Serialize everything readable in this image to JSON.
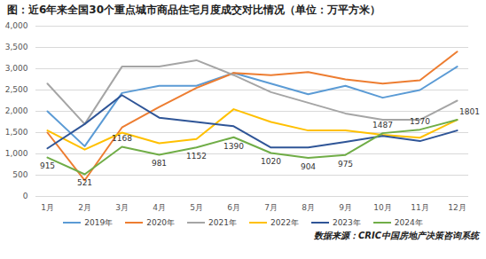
{
  "chart_data": {
    "type": "line",
    "title": "图：近6年来全国30个重点城市商品住宅月度成交对比情况（单位：万平方米）",
    "source": "数据来源：CRIC中国房地产决策咨询系统",
    "categories": [
      "1月",
      "2月",
      "3月",
      "4月",
      "5月",
      "6月",
      "7月",
      "8月",
      "9月",
      "10月",
      "11月",
      "12月"
    ],
    "series": [
      {
        "name": "2019年",
        "color": "#5b9bd5",
        "values": [
          2000,
          1180,
          2430,
          2600,
          2600,
          2900,
          2650,
          2400,
          2600,
          2320,
          2500,
          3050
        ]
      },
      {
        "name": "2020年",
        "color": "#ed7d31",
        "values": [
          1500,
          380,
          1620,
          2100,
          2550,
          2900,
          2850,
          2920,
          2750,
          2650,
          2730,
          3400
        ]
      },
      {
        "name": "2021年",
        "color": "#a5a5a5",
        "values": [
          2650,
          1700,
          3050,
          3050,
          3200,
          2850,
          2450,
          2200,
          1950,
          1800,
          1800,
          2250
        ]
      },
      {
        "name": "2022年",
        "color": "#ffc000",
        "values": [
          1550,
          1100,
          1500,
          1250,
          1350,
          2050,
          1750,
          1550,
          1550,
          1450,
          1380,
          1800
        ]
      },
      {
        "name": "2023年",
        "color": "#2f5597",
        "values": [
          1130,
          1700,
          2380,
          1850,
          1750,
          1650,
          1150,
          1150,
          1280,
          1420,
          1300,
          1550
        ]
      },
      {
        "name": "2024年",
        "color": "#70ad47",
        "data_labels": true,
        "values": [
          915,
          521,
          1168,
          981,
          1152,
          1390,
          1020,
          904,
          975,
          1487,
          1570,
          1801
        ]
      }
    ],
    "ylim": [
      0,
      4000
    ],
    "yticks": [
      0,
      500,
      1000,
      1500,
      2000,
      2500,
      3000,
      3500,
      4000
    ],
    "grid": true,
    "legend": "bottom"
  }
}
